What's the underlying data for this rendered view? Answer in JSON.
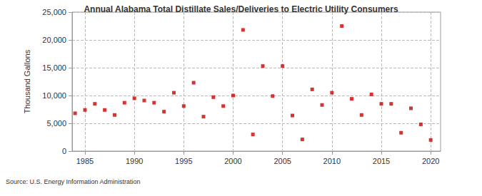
{
  "chart_data": {
    "type": "scatter",
    "title": "Annual Alabama Total Distillate Sales/Deliveries to Electric Utility Consumers",
    "y_label": "Thousand Gallons",
    "annotations": [
      "Source: U.S. Energy Information Administration"
    ],
    "x": [
      1984,
      1985,
      1986,
      1987,
      1988,
      1989,
      1990,
      1991,
      1992,
      1993,
      1994,
      1995,
      1996,
      1997,
      1998,
      1999,
      2000,
      2001,
      2002,
      2003,
      2004,
      2005,
      2006,
      2007,
      2008,
      2009,
      2010,
      2011,
      2012,
      2013,
      2014,
      2015,
      2016,
      2017,
      2018,
      2019,
      2020
    ],
    "values": [
      6800,
      7400,
      8500,
      7400,
      6500,
      8700,
      9500,
      9100,
      8700,
      7100,
      10500,
      8100,
      12300,
      6200,
      9700,
      8100,
      10000,
      21800,
      3000,
      15300,
      9900,
      15300,
      6400,
      2100,
      11100,
      8300,
      10500,
      22500,
      9400,
      6500,
      10200,
      8500,
      8500,
      3300,
      7700,
      4800,
      2000
    ],
    "color": "#cc0000",
    "marker": "square",
    "xlim": [
      1983.7,
      2021
    ],
    "xticks": [
      1985,
      1990,
      1995,
      2000,
      2005,
      2010,
      2015,
      2020
    ],
    "ylim": [
      0,
      25000
    ],
    "yticks": [
      0,
      {
        "value": 5000,
        "label": "5,000"
      },
      {
        "value": 10000,
        "label": "10,000"
      },
      {
        "value": 15000,
        "label": "15,000"
      },
      {
        "value": 20000,
        "label": "20,000"
      },
      {
        "value": 25000,
        "label": "25,000"
      }
    ],
    "grid": true
  }
}
